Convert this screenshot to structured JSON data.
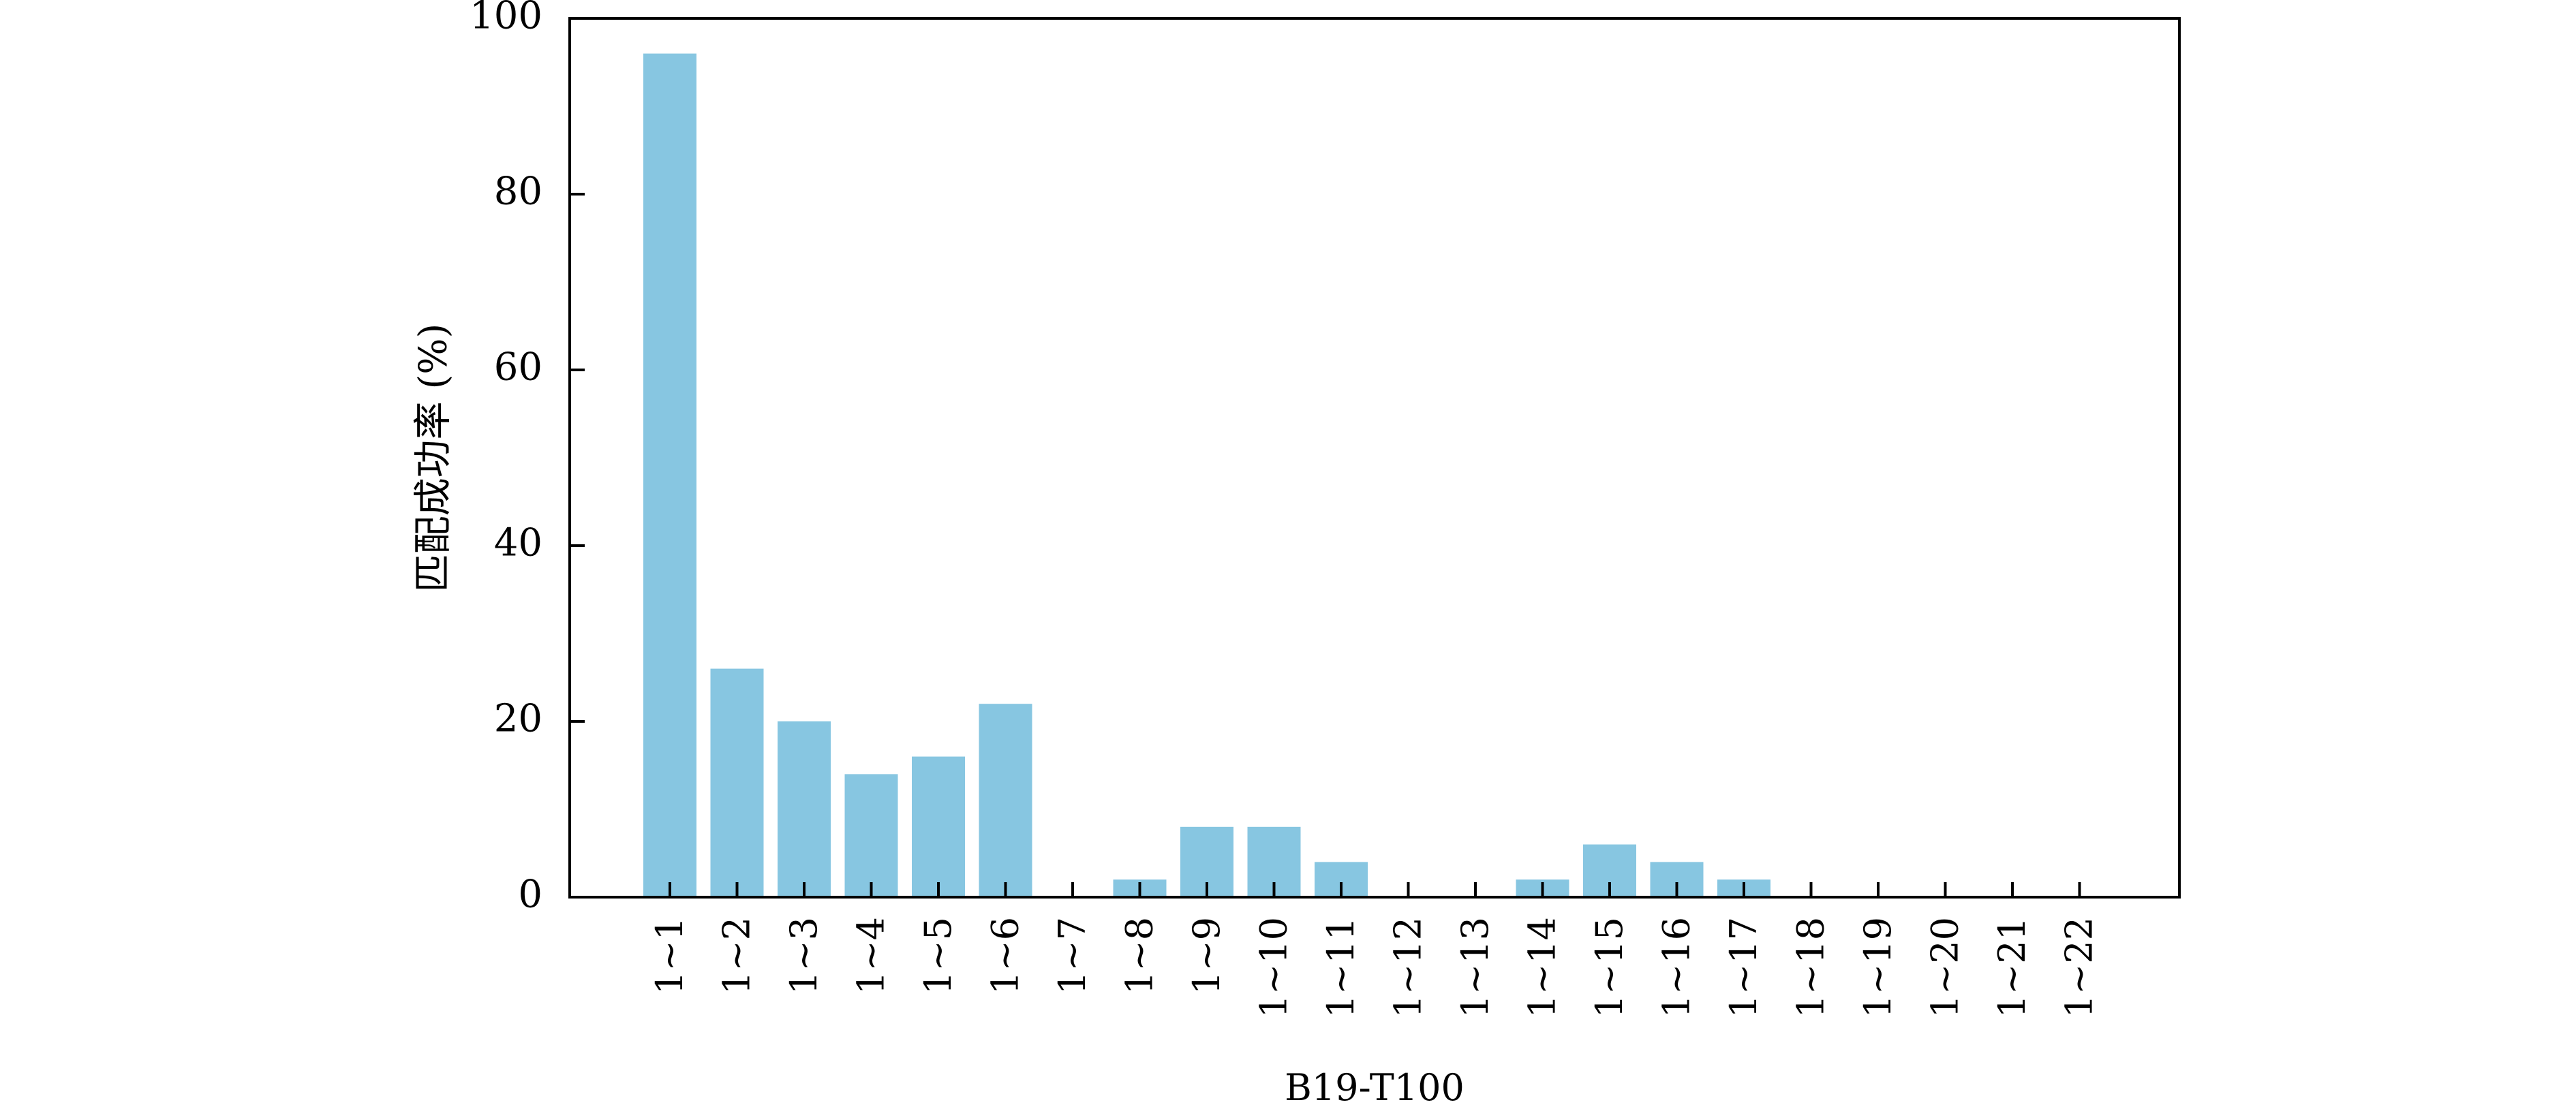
{
  "chart_data": {
    "type": "bar",
    "title": "",
    "xlabel": "B19-T100",
    "ylabel": "匹配成功率 (%)",
    "categories": [
      "1~1",
      "1~2",
      "1~3",
      "1~4",
      "1~5",
      "1~6",
      "1~7",
      "1~8",
      "1~9",
      "1~10",
      "1~11",
      "1~12",
      "1~13",
      "1~14",
      "1~15",
      "1~16",
      "1~17",
      "1~18",
      "1~19",
      "1~20",
      "1~21",
      "1~22"
    ],
    "values": [
      96,
      26,
      20,
      14,
      16,
      22,
      0,
      2,
      8,
      8,
      4,
      0,
      0,
      2,
      6,
      4,
      2,
      0,
      0,
      0,
      0,
      0
    ],
    "ylim": [
      0,
      100
    ],
    "yticks": [
      "0",
      "20",
      "40",
      "60",
      "80",
      "100"
    ],
    "grid": false,
    "legend": "none",
    "colors": {
      "bar": "#87c6e1",
      "axis": "#000000"
    }
  }
}
